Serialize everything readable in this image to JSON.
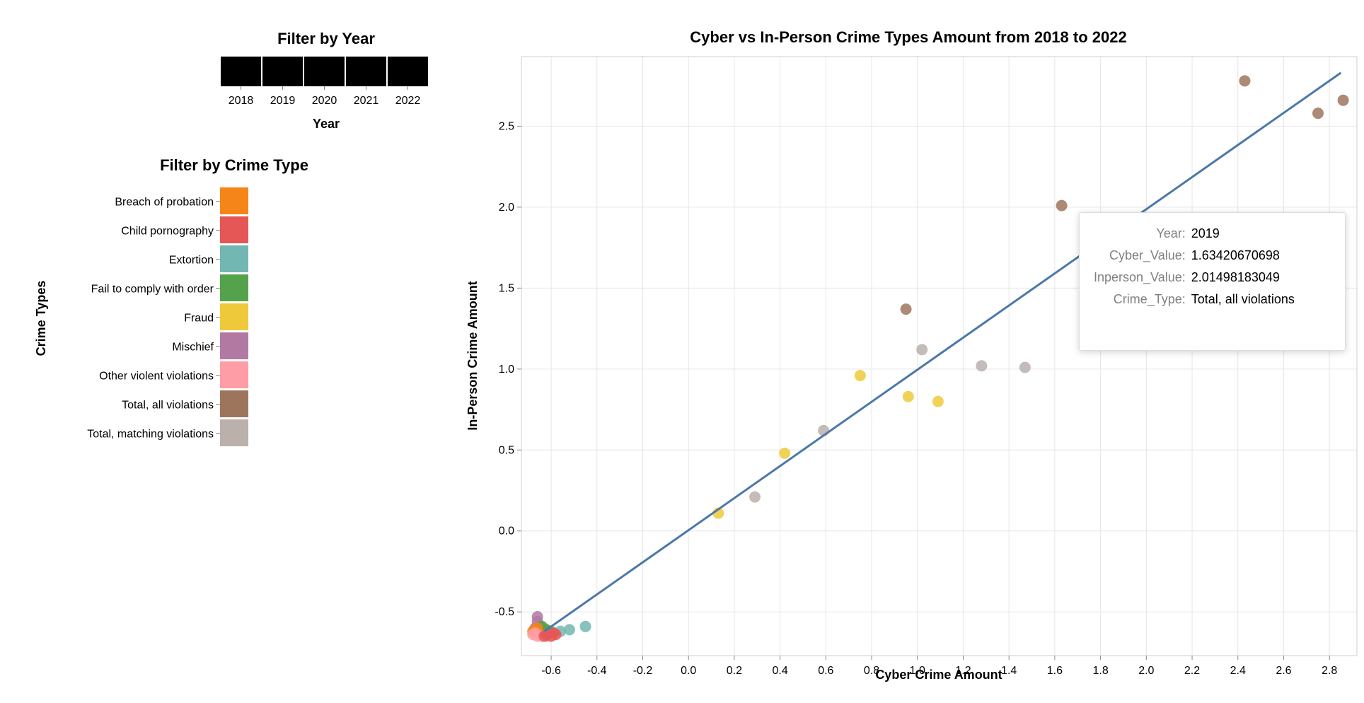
{
  "year_filter": {
    "title": "Filter by Year",
    "axis_title": "Year",
    "years": [
      "2018",
      "2019",
      "2020",
      "2021",
      "2022"
    ]
  },
  "type_filter": {
    "title": "Filter by Crime Type",
    "axis_title": "Crime Types",
    "items": [
      {
        "label": "Breach of probation",
        "color": "#f58518"
      },
      {
        "label": "Child pornography",
        "color": "#e45756"
      },
      {
        "label": "Extortion",
        "color": "#72b7b2"
      },
      {
        "label": "Fail to comply with order",
        "color": "#54a24b"
      },
      {
        "label": "Fraud",
        "color": "#eeca3b"
      },
      {
        "label": "Mischief",
        "color": "#b279a2"
      },
      {
        "label": "Other violent violations",
        "color": "#ff9da6"
      },
      {
        "label": "Total, all violations",
        "color": "#9d755d"
      },
      {
        "label": "Total, matching violations",
        "color": "#bab0ac"
      }
    ]
  },
  "chart_data": {
    "type": "scatter",
    "title": "Cyber vs In-Person Crime Types Amount from 2018 to 2022",
    "xlabel": "Cyber Crime Amount",
    "ylabel": "In-Person Crime Amount",
    "xlim": [
      -0.73,
      2.92
    ],
    "ylim": [
      -0.77,
      2.93
    ],
    "xticks": [
      -0.6,
      -0.4,
      -0.2,
      0.0,
      0.2,
      0.4,
      0.6,
      0.8,
      1.0,
      1.2,
      1.4,
      1.6,
      1.8,
      2.0,
      2.2,
      2.4,
      2.6,
      2.8
    ],
    "xtick_labels": [
      "-0.6",
      "-0.4",
      "-0.2",
      "0.0",
      "0.2",
      "0.4",
      "0.6",
      "0.8",
      "1.0",
      "1.2",
      "1.4",
      "1.6",
      "1.8",
      "2.0",
      "2.2",
      "2.4",
      "2.6",
      "2.8"
    ],
    "yticks": [
      -0.5,
      0.0,
      0.5,
      1.0,
      1.5,
      2.0,
      2.5
    ],
    "ytick_labels": [
      "-0.5",
      "0.0",
      "0.5",
      "1.0",
      "1.5",
      "2.0",
      "2.5"
    ],
    "grid": true,
    "trend_line": {
      "x": [
        -0.63,
        2.85
      ],
      "y": [
        -0.62,
        2.83
      ],
      "color": "#4c78a8"
    },
    "points": [
      {
        "x": 2.43,
        "y": 2.78,
        "type": "Total, all violations"
      },
      {
        "x": 2.86,
        "y": 2.66,
        "type": "Total, all violations"
      },
      {
        "x": 2.75,
        "y": 2.58,
        "type": "Total, all violations"
      },
      {
        "x": 1.63,
        "y": 2.01,
        "type": "Total, all violations"
      },
      {
        "x": 0.95,
        "y": 1.37,
        "type": "Total, all violations"
      },
      {
        "x": 1.02,
        "y": 1.12,
        "type": "Total, matching violations"
      },
      {
        "x": 1.28,
        "y": 1.02,
        "type": "Total, matching violations"
      },
      {
        "x": 1.47,
        "y": 1.01,
        "type": "Total, matching violations"
      },
      {
        "x": 0.59,
        "y": 0.62,
        "type": "Total, matching violations"
      },
      {
        "x": 0.29,
        "y": 0.21,
        "type": "Total, matching violations"
      },
      {
        "x": 0.75,
        "y": 0.96,
        "type": "Fraud"
      },
      {
        "x": 0.96,
        "y": 0.83,
        "type": "Fraud"
      },
      {
        "x": 1.09,
        "y": 0.8,
        "type": "Fraud"
      },
      {
        "x": 0.42,
        "y": 0.48,
        "type": "Fraud"
      },
      {
        "x": 0.13,
        "y": 0.11,
        "type": "Fraud"
      },
      {
        "x": -0.45,
        "y": -0.59,
        "type": "Extortion"
      },
      {
        "x": -0.52,
        "y": -0.61,
        "type": "Extortion"
      },
      {
        "x": -0.56,
        "y": -0.62,
        "type": "Extortion"
      },
      {
        "x": -0.6,
        "y": -0.62,
        "type": "Extortion"
      },
      {
        "x": -0.63,
        "y": -0.61,
        "type": "Extortion"
      },
      {
        "x": -0.66,
        "y": -0.53,
        "type": "Mischief"
      },
      {
        "x": -0.66,
        "y": -0.56,
        "type": "Mischief"
      },
      {
        "x": -0.65,
        "y": -0.59,
        "type": "Mischief"
      },
      {
        "x": -0.67,
        "y": -0.6,
        "type": "Mischief"
      },
      {
        "x": -0.64,
        "y": -0.62,
        "type": "Mischief"
      },
      {
        "x": -0.64,
        "y": -0.59,
        "type": "Fail to comply with order"
      },
      {
        "x": -0.62,
        "y": -0.61,
        "type": "Fail to comply with order"
      },
      {
        "x": -0.63,
        "y": -0.63,
        "type": "Fail to comply with order"
      },
      {
        "x": -0.65,
        "y": -0.62,
        "type": "Fail to comply with order"
      },
      {
        "x": -0.61,
        "y": -0.62,
        "type": "Fail to comply with order"
      },
      {
        "x": -0.66,
        "y": -0.63,
        "type": "Breach of probation"
      },
      {
        "x": -0.67,
        "y": -0.61,
        "type": "Breach of probation"
      },
      {
        "x": -0.65,
        "y": -0.64,
        "type": "Breach of probation"
      },
      {
        "x": -0.68,
        "y": -0.62,
        "type": "Breach of probation"
      },
      {
        "x": -0.66,
        "y": -0.6,
        "type": "Breach of probation"
      },
      {
        "x": -0.68,
        "y": -0.64,
        "type": "Other violent violations"
      },
      {
        "x": -0.66,
        "y": -0.65,
        "type": "Other violent violations"
      },
      {
        "x": -0.64,
        "y": -0.65,
        "type": "Other violent violations"
      },
      {
        "x": -0.62,
        "y": -0.65,
        "type": "Other violent violations"
      },
      {
        "x": -0.67,
        "y": -0.63,
        "type": "Other violent violations"
      },
      {
        "x": -0.58,
        "y": -0.64,
        "type": "Child pornography"
      },
      {
        "x": -0.6,
        "y": -0.65,
        "type": "Child pornography"
      },
      {
        "x": -0.62,
        "y": -0.64,
        "type": "Child pornography"
      },
      {
        "x": -0.59,
        "y": -0.63,
        "type": "Child pornography"
      },
      {
        "x": -0.63,
        "y": -0.65,
        "type": "Child pornography"
      }
    ]
  },
  "tooltip": {
    "rows": [
      {
        "key": "Year:",
        "value": "2019"
      },
      {
        "key": "Cyber_Value:",
        "value": "1.63420670698"
      },
      {
        "key": "Inperson_Value:",
        "value": "2.01498183049"
      },
      {
        "key": "Crime_Type:",
        "value": "Total, all violations"
      }
    ]
  }
}
